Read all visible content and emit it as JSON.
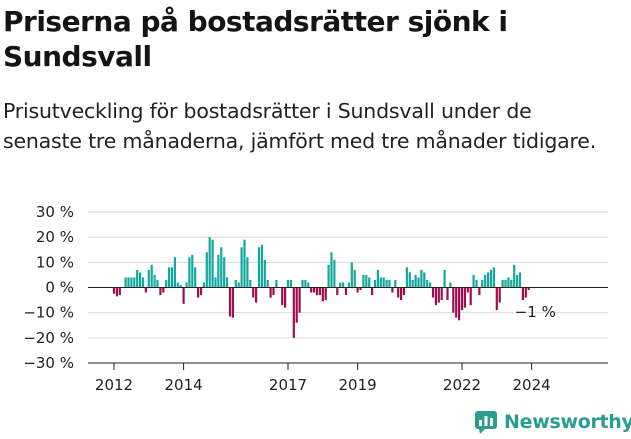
{
  "header": {
    "title": "Priserna på bostadsrätter sjönk i Sundsvall",
    "subtitle": "Prisutveckling för bostadsrätter i Sundsvall under de senaste tre månaderna, jämfört med tre månader tidigare."
  },
  "brand": {
    "name": "Newsworthy"
  },
  "colors": {
    "positive": "#13a89e",
    "negative": "#9e0e4e",
    "grid": "#d9d9d9",
    "baseline": "#222222",
    "brand": "#2a9d8f"
  },
  "chart_data": {
    "type": "bar",
    "title": "Priserna på bostadsrätter sjönk i Sundsvall",
    "xlabel": "",
    "ylabel": "",
    "ylim": [
      -30,
      30
    ],
    "y_ticks": [
      "30 %",
      "20 %",
      "10 %",
      "0 %",
      "−10 %",
      "−20 %",
      "−30 %"
    ],
    "y_tick_values": [
      30,
      20,
      10,
      0,
      -10,
      -20,
      -30
    ],
    "x_ticks": [
      "2012",
      "2014",
      "2017",
      "2019",
      "2022",
      "2024"
    ],
    "x_tick_months": [
      0,
      24,
      60,
      84,
      120,
      144
    ],
    "start": "2012-01",
    "grid": true,
    "annotation": "−1 %",
    "values": [
      -2.5,
      -3.5,
      -3,
      0,
      4,
      4,
      4,
      4,
      7,
      6,
      4,
      -2,
      7,
      9,
      5,
      3,
      -3,
      -2,
      3,
      8,
      8,
      12,
      2,
      1,
      -6.5,
      2,
      12,
      13,
      8,
      -4,
      -3,
      2,
      14,
      20,
      19,
      4,
      13,
      16,
      12,
      4,
      -11.5,
      -12,
      3,
      2,
      16,
      19,
      12,
      3,
      -4,
      -6,
      16,
      17,
      11,
      3,
      -4,
      -3,
      3,
      0,
      -7,
      -8,
      3,
      3,
      -20,
      -14,
      -10,
      3,
      3,
      2,
      -2,
      -2,
      -3,
      -3,
      -5.5,
      -5,
      9,
      14,
      11,
      -3,
      2,
      2,
      -3,
      2,
      10,
      7,
      -2,
      -1,
      5,
      5,
      4,
      -3,
      3,
      7,
      4,
      4,
      3,
      3,
      -2,
      3,
      -4,
      -5,
      -3,
      8,
      6,
      3,
      5,
      4,
      7,
      6,
      3,
      2,
      -4,
      -7,
      -6,
      -5,
      7,
      -5,
      2,
      -10,
      -12,
      -13,
      -9,
      -8,
      -2,
      -7,
      5,
      3,
      -3,
      3,
      5,
      6,
      7,
      8,
      -9,
      -6,
      3,
      3,
      4,
      3,
      9,
      5,
      6,
      -5,
      -4,
      -1
    ]
  }
}
